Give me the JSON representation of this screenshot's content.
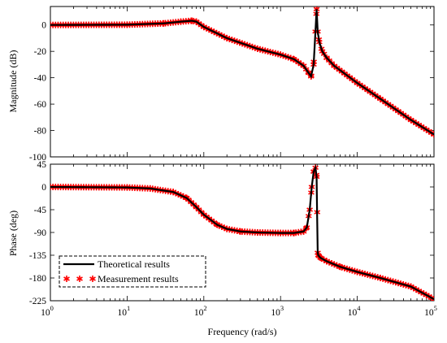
{
  "chart_data": [
    {
      "type": "line",
      "panel": "magnitude",
      "ylabel": "Magnitude (dB)",
      "xscale": "log",
      "xlim": [
        1,
        100000
      ],
      "ylim": [
        -100,
        14
      ],
      "yticks": [
        0,
        -20,
        -40,
        -60,
        -80,
        -100
      ],
      "ytick_labels": [
        "0",
        "-20",
        "-40",
        "-60",
        "-80",
        "-100"
      ],
      "series": [
        {
          "name": "Theoretical results",
          "style": "line",
          "color": "#000000",
          "x": [
            1,
            10,
            30,
            50,
            70,
            80,
            100,
            200,
            500,
            1000,
            1500,
            2000,
            2300,
            2500,
            2700,
            2850,
            2950,
            3050,
            3200,
            3500,
            4000,
            5000,
            10000,
            20000,
            50000,
            100000
          ],
          "y": [
            0,
            0.2,
            1.2,
            2.5,
            3.2,
            2.5,
            -1.5,
            -10,
            -18,
            -22.5,
            -26,
            -31,
            -36,
            -39,
            -30,
            -5,
            12,
            -5,
            -13,
            -20,
            -25,
            -31,
            -44,
            -56,
            -72,
            -83
          ]
        },
        {
          "name": "Measurement results",
          "style": "marker",
          "marker": "*",
          "color": "#ff0000",
          "x": [
            1,
            10,
            30,
            50,
            70,
            80,
            100,
            200,
            500,
            1000,
            1500,
            2000,
            2300,
            2500,
            2700,
            2850,
            2950,
            3050,
            3200,
            3500,
            4000,
            5000,
            10000,
            20000,
            50000,
            100000
          ],
          "y": [
            0,
            0.2,
            1.2,
            2.5,
            3.2,
            2.5,
            -1.5,
            -10,
            -18,
            -22.5,
            -26,
            -31,
            -36,
            -39,
            -30,
            -5,
            12,
            -5,
            -13,
            -20,
            -25,
            -31,
            -44,
            -56,
            -72,
            -83
          ]
        }
      ]
    },
    {
      "type": "line",
      "panel": "phase",
      "ylabel": "Phase (deg)",
      "xlabel": "Frequency  (rad/s)",
      "xscale": "log",
      "xlim": [
        1,
        100000
      ],
      "ylim": [
        -225,
        45
      ],
      "xticks": [
        1,
        10,
        100,
        1000,
        10000,
        100000
      ],
      "xtick_labels": [
        {
          "base": "10",
          "exp": "0"
        },
        {
          "base": "10",
          "exp": "1"
        },
        {
          "base": "10",
          "exp": "2"
        },
        {
          "base": "10",
          "exp": "3"
        },
        {
          "base": "10",
          "exp": "4"
        },
        {
          "base": "10",
          "exp": "5"
        }
      ],
      "yticks": [
        45,
        0,
        -45,
        -90,
        -135,
        -180,
        -225
      ],
      "ytick_labels": [
        "45",
        "0",
        "-45",
        "-90",
        "-135",
        "-180",
        "-225"
      ],
      "legend": {
        "placement": "bottom-left",
        "entries": [
          "Theoretical results",
          "Measurement results"
        ]
      },
      "series": [
        {
          "name": "Theoretical results",
          "style": "line",
          "color": "#000000",
          "x": [
            1,
            10,
            20,
            40,
            60,
            80,
            100,
            150,
            200,
            300,
            500,
            1000,
            1500,
            2000,
            2200,
            2400,
            2550,
            2700,
            2850,
            2950,
            3000,
            3050,
            3100,
            3300,
            4000,
            6000,
            10000,
            20000,
            50000,
            100000
          ],
          "y": [
            0,
            -1,
            -3,
            -10,
            -22,
            -40,
            -55,
            -75,
            -83,
            -88,
            -90,
            -91,
            -91,
            -88,
            -80,
            -45,
            0,
            30,
            38,
            20,
            -60,
            -130,
            -135,
            -140,
            -147,
            -158,
            -168,
            -180,
            -197,
            -222
          ]
        },
        {
          "name": "Measurement results",
          "style": "marker",
          "marker": "*",
          "color": "#ff0000",
          "x": [
            1,
            10,
            20,
            40,
            60,
            80,
            100,
            150,
            200,
            300,
            500,
            1000,
            1500,
            2000,
            2200,
            2400,
            2550,
            2700,
            2850,
            2950,
            3000,
            3050,
            3100,
            3300,
            4000,
            6000,
            10000,
            20000,
            50000,
            100000
          ],
          "y": [
            0,
            -1,
            -3,
            -10,
            -22,
            -40,
            -55,
            -75,
            -83,
            -88,
            -90,
            -91,
            -91,
            -88,
            -80,
            -45,
            0,
            30,
            38,
            20,
            -50,
            -130,
            -135,
            -140,
            -147,
            -158,
            -168,
            -180,
            -197,
            -222
          ]
        }
      ]
    }
  ]
}
